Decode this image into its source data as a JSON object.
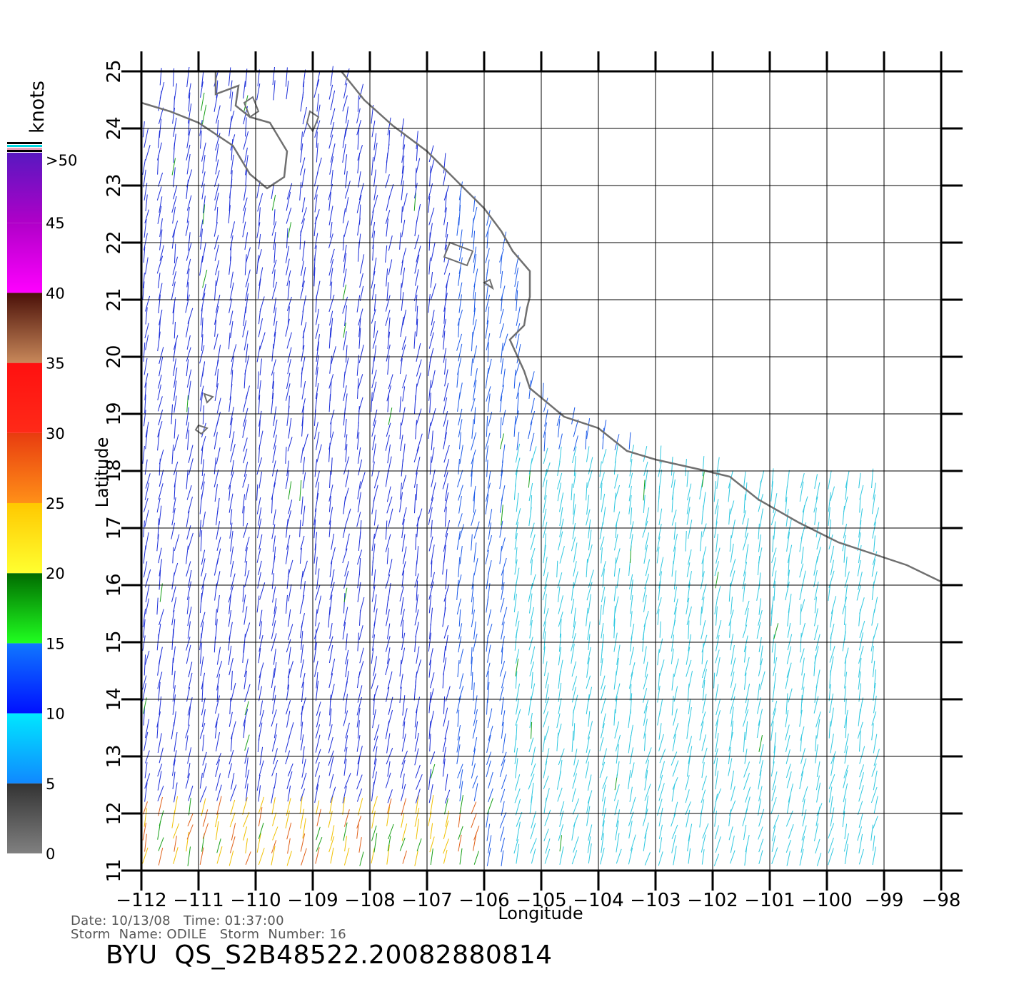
{
  "map": {
    "lon_ticks": [
      -112,
      -111,
      -110,
      -109,
      -108,
      -107,
      -106,
      -105,
      -104,
      -103,
      -102,
      -101,
      -100,
      -99,
      -98
    ],
    "lon_tick_labels": [
      "−112",
      "−111",
      "−110",
      "−109",
      "−108",
      "−107",
      "−106",
      "−105",
      "−104",
      "−103",
      "−102",
      "−101",
      "−100",
      "−99",
      "−98"
    ],
    "lat_ticks": [
      11,
      12,
      13,
      14,
      15,
      16,
      17,
      18,
      19,
      20,
      21,
      22,
      23,
      24,
      25
    ],
    "lat_tick_labels": [
      "11",
      "12",
      "13",
      "14",
      "15",
      "16",
      "17",
      "18",
      "19",
      "20",
      "21",
      "22",
      "23",
      "24",
      "25"
    ],
    "lon_range": [
      -112,
      -98
    ],
    "lat_range": [
      11,
      25
    ],
    "xlabel": "Longitude",
    "ylabel": "Latitude",
    "coastline_color": "#707070",
    "grid_color": "#000000"
  },
  "legend": {
    "units": "knots",
    "tick_labels": [
      "0",
      "5",
      "10",
      "15",
      "20",
      "25",
      "30",
      "35",
      "40",
      "45",
      ">50"
    ],
    "bands": [
      {
        "from": 0,
        "to": 5,
        "top": "#333333",
        "bottom": "#808080"
      },
      {
        "from": 5,
        "to": 10,
        "top": "#00e8ff",
        "bottom": "#1088ff"
      },
      {
        "from": 10,
        "to": 15,
        "top": "#1078ff",
        "bottom": "#0010ff"
      },
      {
        "from": 15,
        "to": 20,
        "top": "#006b00",
        "bottom": "#20ff20"
      },
      {
        "from": 20,
        "to": 25,
        "top": "#ffc800",
        "bottom": "#ffff30"
      },
      {
        "from": 25,
        "to": 30,
        "top": "#e83c10",
        "bottom": "#ff9018"
      },
      {
        "from": 30,
        "to": 35,
        "top": "#ff1010",
        "bottom": "#ff2a18"
      },
      {
        "from": 35,
        "to": 40,
        "top": "#4a1008",
        "bottom": "#c8885a"
      },
      {
        "from": 40,
        "to": 45,
        "top": "#b000c8",
        "bottom": "#ff00ff"
      },
      {
        "from": 45,
        "to": 50,
        "top": "#5818c0",
        "bottom": "#b000c8"
      }
    ]
  },
  "wind_regions": {
    "north_west": "#1a2cd8",
    "north_east": "#1e5ce8",
    "south_east": "#30c8e0",
    "calm": "#202020",
    "moderate": "#18a018",
    "fresh": "#f0c000",
    "strong": "#e06018"
  },
  "info": {
    "date_label": "Date:",
    "date_value": "10/13/08",
    "time_label": "Time:",
    "time_value": "01:37:00",
    "storm_name_label": "Storm  Name:",
    "storm_name_value": "ODILE",
    "storm_number_label": "Storm  Number:",
    "storm_number_value": "16",
    "product_id": "BYU  QS_S2B48522.20082880814"
  }
}
